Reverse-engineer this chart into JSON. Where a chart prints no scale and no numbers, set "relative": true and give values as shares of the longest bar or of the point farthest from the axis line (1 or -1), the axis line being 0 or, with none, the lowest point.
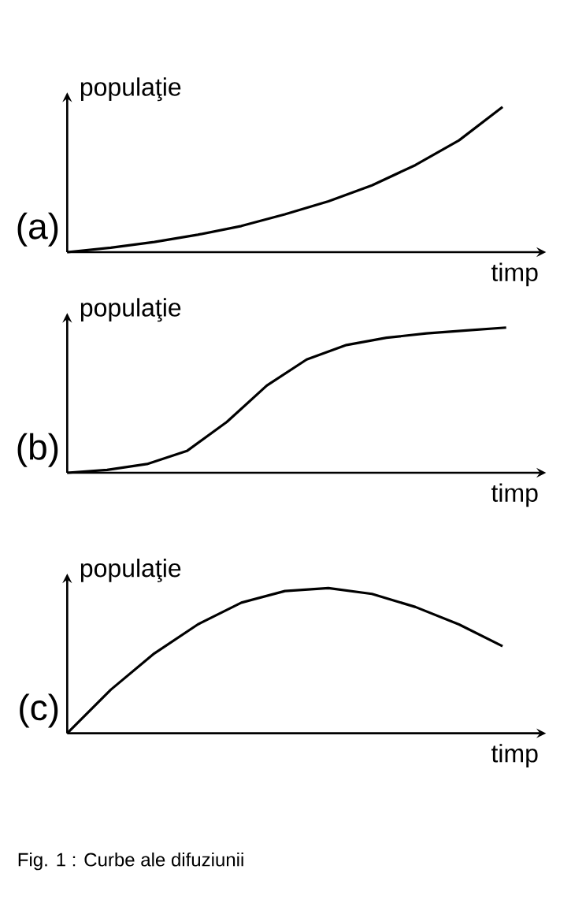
{
  "chart_data": [
    {
      "type": "line",
      "relative": true,
      "ylabel": "populaţie",
      "xlabel": "timp",
      "annotations": [
        "(a)"
      ],
      "categories": [
        null,
        null,
        null,
        null,
        null,
        null,
        null,
        null,
        null,
        null,
        null
      ],
      "series": [
        {
          "color": "#000000",
          "values": [
            0,
            0.03,
            0.07,
            0.12,
            0.18,
            0.26,
            0.35,
            0.46,
            0.6,
            0.77,
            1
          ]
        }
      ]
    },
    {
      "type": "line",
      "relative": true,
      "ylabel": "populaţie",
      "xlabel": "timp",
      "annotations": [
        "(b)"
      ],
      "categories": [
        null,
        null,
        null,
        null,
        null,
        null,
        null,
        null,
        null,
        null,
        null,
        null
      ],
      "series": [
        {
          "color": "#000000",
          "values": [
            0,
            0.02,
            0.06,
            0.15,
            0.35,
            0.6,
            0.78,
            0.88,
            0.93,
            0.96,
            0.98,
            1
          ]
        }
      ]
    },
    {
      "type": "line",
      "relative": true,
      "ylabel": "populaţie",
      "xlabel": "timp",
      "annotations": [
        "(c)",
        "Fig. 1 : Curbe ale difuziunii"
      ],
      "categories": [
        null,
        null,
        null,
        null,
        null,
        null,
        null,
        null,
        null,
        null,
        null
      ],
      "series": [
        {
          "color": "#000000",
          "values": [
            0,
            0.3,
            0.55,
            0.75,
            0.9,
            0.98,
            1,
            0.96,
            0.87,
            0.75,
            0.6
          ]
        }
      ]
    }
  ]
}
